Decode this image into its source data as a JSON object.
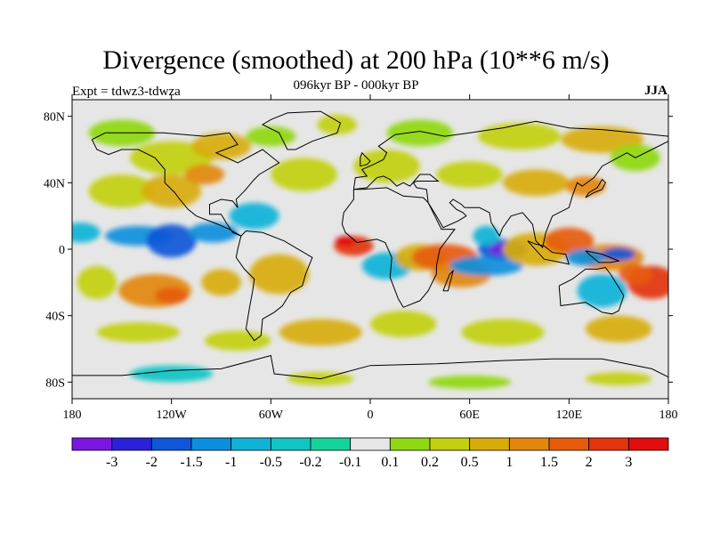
{
  "title": "Divergence (smoothed) at 200 hPa (10**6 m/s)",
  "subtitle": "096kyr BP - 000kyr BP",
  "experiment": "Expt = tdwz3-tdwza",
  "season": "JJA",
  "lat_ticks": [
    "80N",
    "40N",
    "0",
    "40S",
    "80S"
  ],
  "lon_ticks": [
    "180",
    "120W",
    "60W",
    "0",
    "60E",
    "120E",
    "180"
  ],
  "colorbar": {
    "colors": [
      "#7a16e0",
      "#2a21d8",
      "#0f57d8",
      "#0b8fdc",
      "#10b3d8",
      "#12c6c6",
      "#15d49b",
      "#e6e6e6",
      "#8fd812",
      "#c2d010",
      "#d8ac08",
      "#e3870a",
      "#e65c0a",
      "#e4340d",
      "#e20d0d"
    ],
    "labels": [
      "-3",
      "-2",
      "-1.5",
      "-1",
      "-0.5",
      "-0.2",
      "-0.1",
      "0.1",
      "0.2",
      "0.5",
      "1",
      "1.5",
      "2",
      "3"
    ]
  },
  "map_colors": {
    "background": "#e6e6e6",
    "coast": "#000000"
  }
}
